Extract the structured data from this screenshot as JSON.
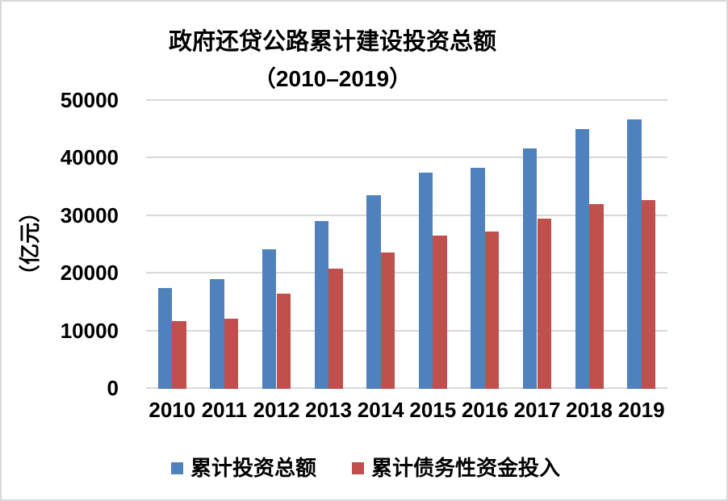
{
  "chart": {
    "title_line1": "政府还贷公路累计建设投资总额",
    "title_line2": "（2010–2019）",
    "y_axis_title": "（亿元）",
    "colors": {
      "series1": "#4F81BD",
      "series2": "#C0504D",
      "gridline": "#D9D9D9",
      "border": "#D9D9D9",
      "text": "#000000",
      "background": "#FFFFFF"
    }
  },
  "chart_data": {
    "type": "bar",
    "title": "政府还贷公路累计建设投资总额（2010–2019）",
    "xlabel": "",
    "ylabel": "（亿元）",
    "categories": [
      "2010",
      "2011",
      "2012",
      "2013",
      "2014",
      "2015",
      "2016",
      "2017",
      "2018",
      "2019"
    ],
    "series": [
      {
        "name": "累计投资总额",
        "key": "cumulative-investment",
        "color": "#4F81BD",
        "values": [
          17300,
          18900,
          24100,
          28900,
          33400,
          37400,
          38200,
          41500,
          44900,
          46600
        ]
      },
      {
        "name": "累计债务性资金投入",
        "key": "debt-capital",
        "color": "#C0504D",
        "values": [
          11600,
          12000,
          16300,
          20700,
          23500,
          26400,
          27200,
          29400,
          31900,
          32600
        ]
      }
    ],
    "ylim": [
      0,
      50000
    ],
    "yticks": [
      0,
      10000,
      20000,
      30000,
      40000,
      50000
    ],
    "grid": true,
    "legend_position": "bottom"
  }
}
